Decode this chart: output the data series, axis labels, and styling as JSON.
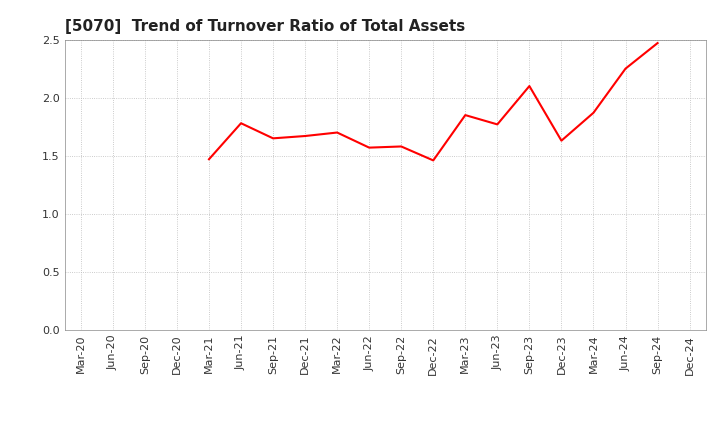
{
  "title": "[5070]  Trend of Turnover Ratio of Total Assets",
  "line_color": "#FF0000",
  "line_width": 1.5,
  "background_color": "#FFFFFF",
  "grid_color": "#BBBBBB",
  "ylim": [
    0.0,
    2.5
  ],
  "yticks": [
    0.0,
    0.5,
    1.0,
    1.5,
    2.0,
    2.5
  ],
  "x_labels": [
    "Mar-20",
    "Jun-20",
    "Sep-20",
    "Dec-20",
    "Mar-21",
    "Jun-21",
    "Sep-21",
    "Dec-21",
    "Mar-22",
    "Jun-22",
    "Sep-22",
    "Dec-22",
    "Mar-23",
    "Jun-23",
    "Sep-23",
    "Dec-23",
    "Mar-24",
    "Jun-24",
    "Sep-24",
    "Dec-24"
  ],
  "data_points": {
    "Mar-21": 1.47,
    "Jun-21": 1.78,
    "Sep-21": 1.65,
    "Dec-21": 1.67,
    "Mar-22": 1.7,
    "Jun-22": 1.57,
    "Sep-22": 1.58,
    "Dec-22": 1.46,
    "Mar-23": 1.85,
    "Jun-23": 1.77,
    "Sep-23": 2.1,
    "Dec-23": 1.63,
    "Mar-24": 1.87,
    "Jun-24": 2.25,
    "Sep-24": 2.47
  },
  "title_fontsize": 11,
  "tick_fontsize": 8,
  "ytick_fontsize": 8
}
